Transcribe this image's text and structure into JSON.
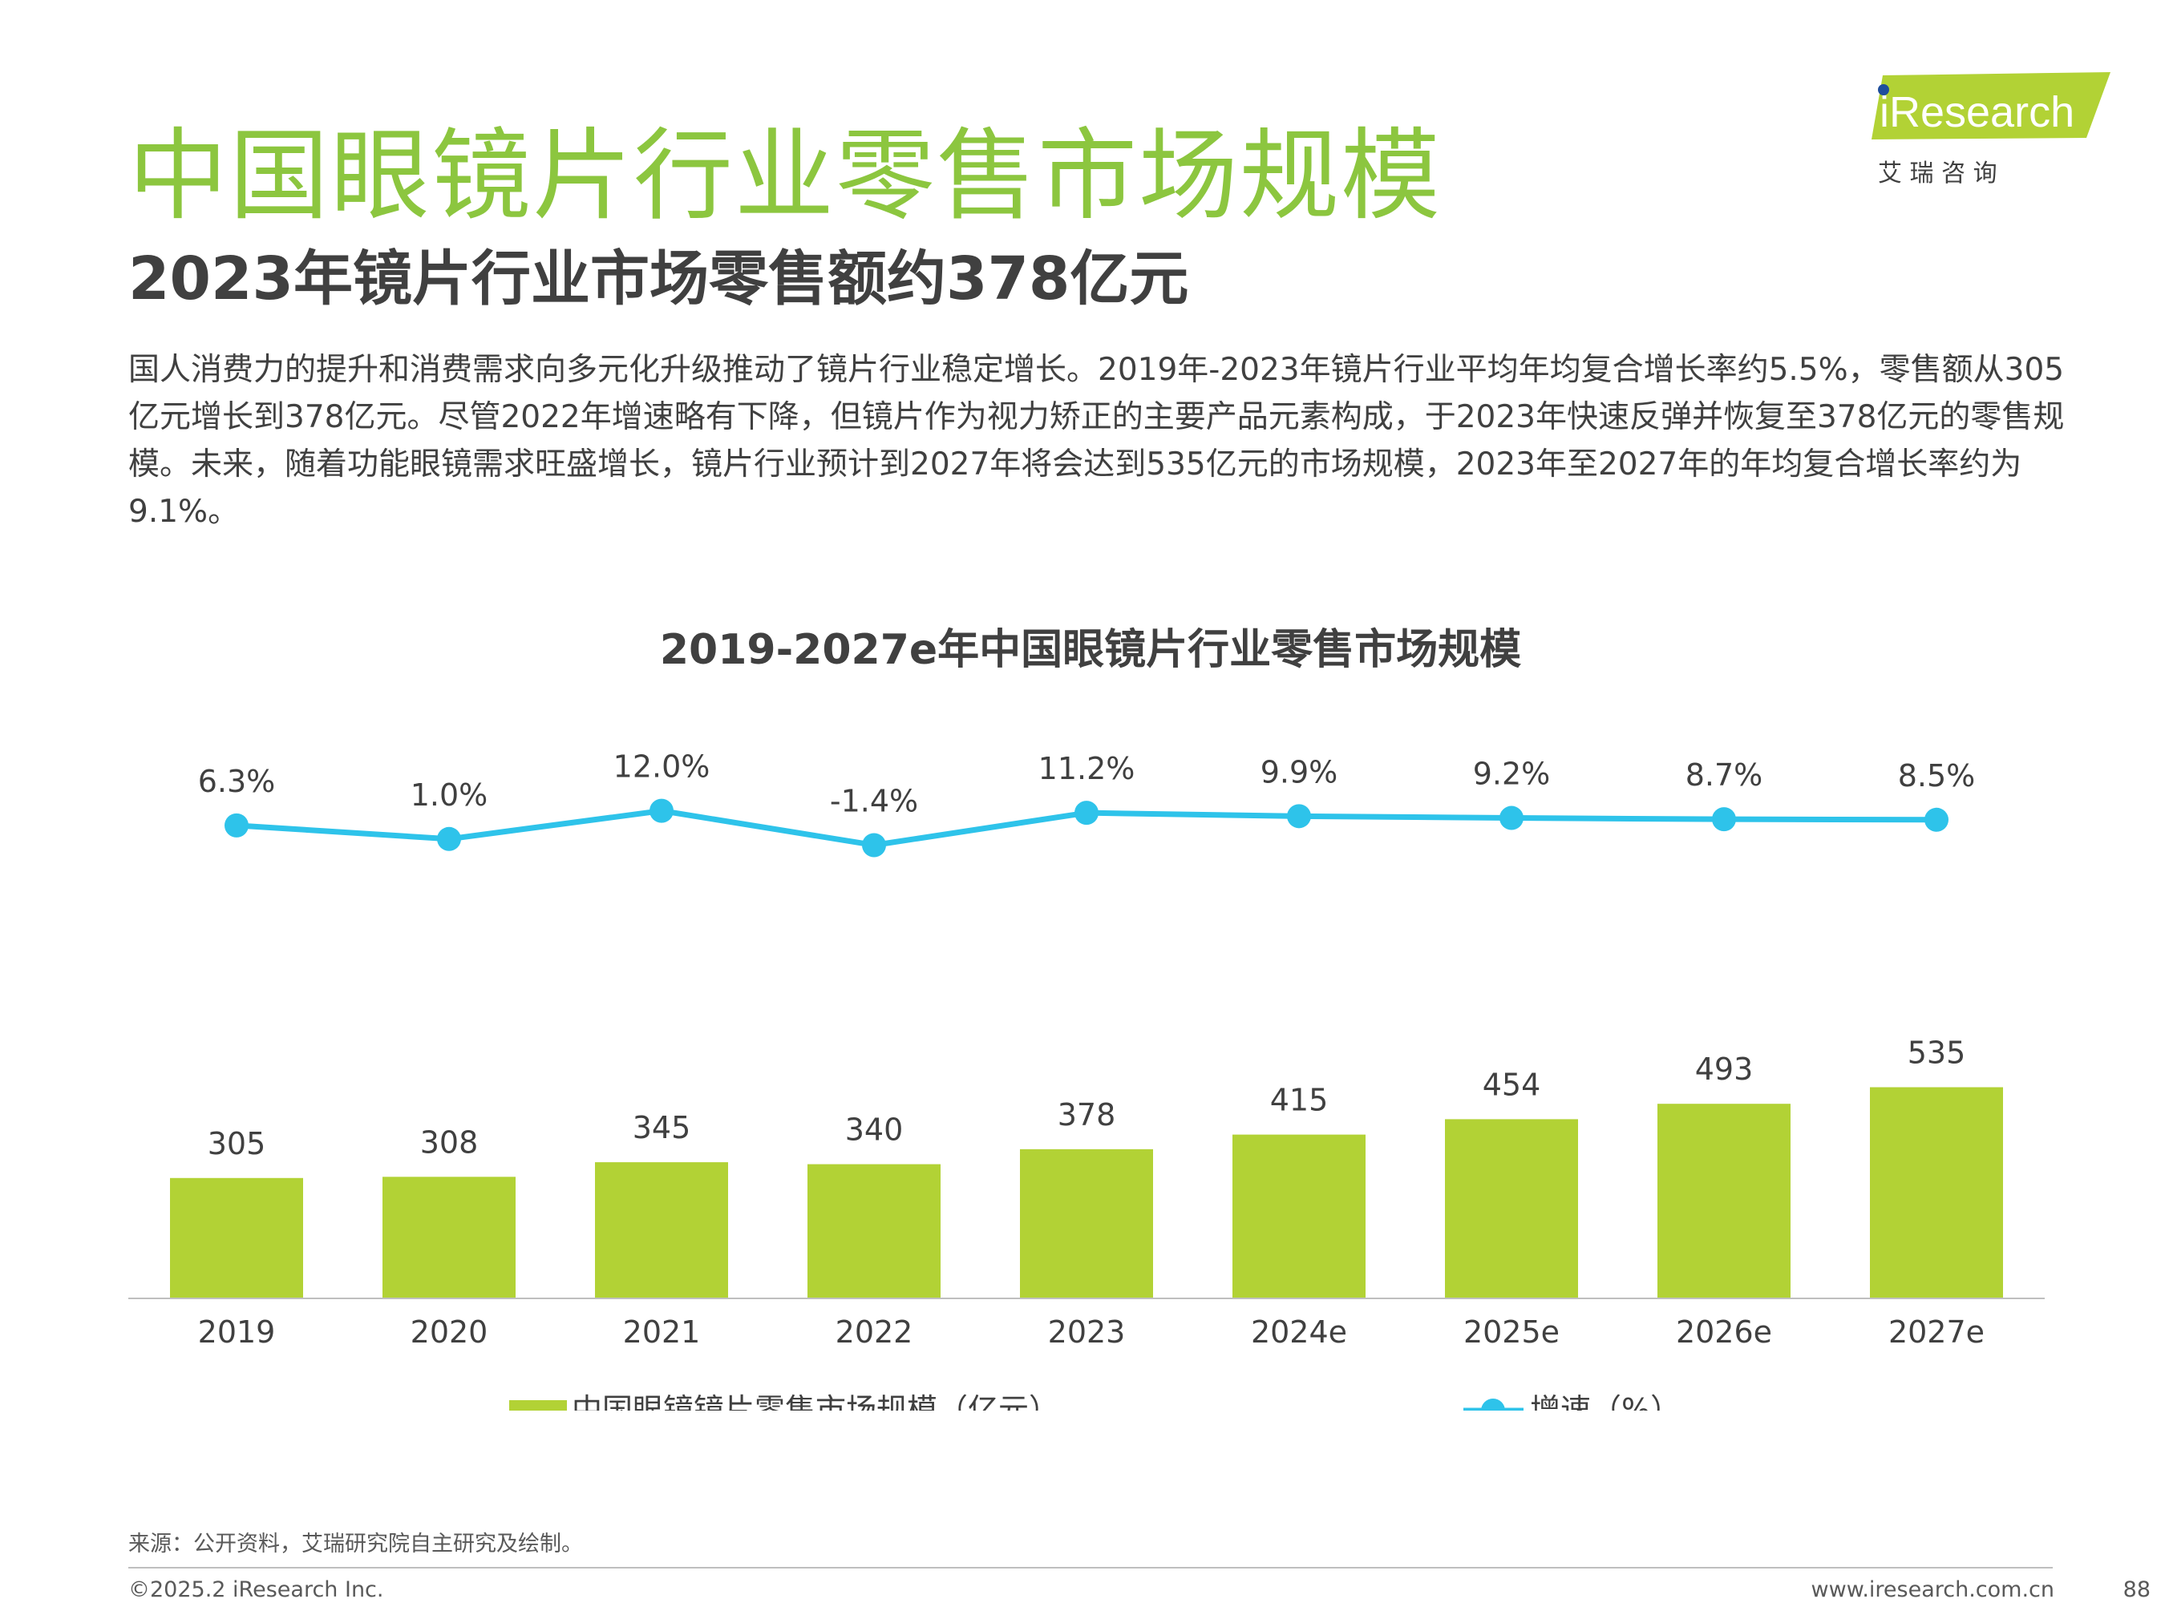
{
  "header": {
    "title": "中国眼镜片行业零售市场规模",
    "subtitle": "2023年镜片行业市场零售额约378亿元"
  },
  "body_text": "国人消费力的提升和消费需求向多元化升级推动了镜片行业稳定增长。2019年-2023年镜片行业平均年均复合增长率约5.5%，零售额从305亿元增长到378亿元。尽管2022年增速略有下降，但镜片作为视力矫正的主要产品元素构成，于2023年快速反弹并恢复至378亿元的零售规模。未来，随着功能眼镜需求旺盛增长，镜片行业预计到2027年将会达到535亿元的市场规模，2023年至2027年的年均复合增长率约为9.1%。",
  "logo": {
    "brand": "iResearch",
    "cn_name": "艾 瑞 咨 询"
  },
  "chart_data": {
    "type": "bar",
    "title": "2019-2027e年中国眼镜片行业零售市场规模",
    "categories": [
      "2019",
      "2020",
      "2021",
      "2022",
      "2023",
      "2024e",
      "2025e",
      "2026e",
      "2027e"
    ],
    "series": [
      {
        "name": "中国眼镜镜片零售市场规模（亿元）",
        "type": "bar",
        "values": [
          305,
          308,
          345,
          340,
          378,
          415,
          454,
          493,
          535
        ],
        "labels": [
          "305",
          "308",
          "345",
          "340",
          "378",
          "415",
          "454",
          "493",
          "535"
        ],
        "color": "#b2d235"
      },
      {
        "name": "增速（%）",
        "type": "line",
        "values": [
          6.3,
          1.0,
          12.0,
          -1.4,
          11.2,
          9.9,
          9.2,
          8.7,
          8.5
        ],
        "labels": [
          "6.3%",
          "1.0%",
          "12.0%",
          "-1.4%",
          "11.2%",
          "9.9%",
          "9.2%",
          "8.7%",
          "8.5%"
        ],
        "color": "#2ec3ea"
      }
    ],
    "legend": "bottom",
    "grid": false
  },
  "footer": {
    "source": "来源：公开资料，艾瑞研究院自主研究及绘制。",
    "copyright": "©2025.2 iResearch Inc.",
    "website": "www.iresearch.com.cn",
    "page": "88"
  }
}
